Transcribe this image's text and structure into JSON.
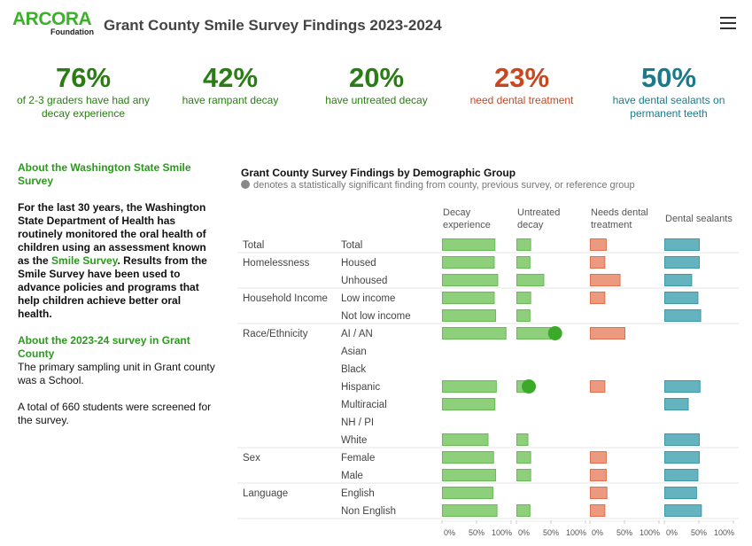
{
  "header": {
    "logo_text": "ARCORA",
    "logo_sub": "Foundation",
    "title": "Grant County Smile Survey Findings 2023-2024",
    "menu_icon": "hamburger-icon"
  },
  "kpis": [
    {
      "value": "76%",
      "label": "of 2-3 graders have had any decay experience",
      "color": "#2a7d14"
    },
    {
      "value": "42%",
      "label": "have rampant decay",
      "color": "#2a7d14"
    },
    {
      "value": "20%",
      "label": "have untreated decay",
      "color": "#2a7d14"
    },
    {
      "value": "23%",
      "label": "need dental treatment",
      "color": "#c9461e"
    },
    {
      "value": "50%",
      "label": "have dental sealants on permanent teeth",
      "color": "#1a7a8c"
    }
  ],
  "sidebar": {
    "about_heading": "About the Washington State Smile Survey",
    "about_text_1": "For the last 30 years, the Washington State Department of Health has routinely monitored the oral health of children using an assessment known as the ",
    "about_link": "Smile Survey",
    "about_text_2": ".  Results from the Smile Survey have been used to advance policies and programs that help children achieve better oral health.",
    "survey_heading": "About the 2023-24 survey in Grant County",
    "survey_text_1": "The primary sampling unit in Grant county was a School.",
    "survey_text_2": "A total of 660 students were screened for the survey."
  },
  "chart_data": {
    "type": "bar",
    "title": "Grant County Survey Findings by Demographic Group",
    "subtitle": "denotes a statistically significant finding from county, previous survey, or reference group",
    "measures": [
      "Decay experience",
      "Untreated decay",
      "Needs dental treatment",
      "Dental sealants"
    ],
    "colors": [
      "#8ecf7c",
      "#8ecf7c",
      "#eb9a80",
      "#66b3c0"
    ],
    "border_colors": [
      "#66bb55",
      "#66bb55",
      "#e07050",
      "#3a9aaa"
    ],
    "significance_color": "#3aaa28",
    "xlim": [
      0,
      100
    ],
    "tick_labels": [
      "0%",
      "50%",
      "100%"
    ],
    "rows": [
      {
        "group": "Total",
        "label": "Total",
        "values": [
          76,
          20,
          23,
          50
        ],
        "sig": [
          false,
          false,
          false,
          false
        ]
      },
      {
        "group": "Homelessness",
        "label": "Housed",
        "values": [
          75,
          19,
          21,
          50
        ],
        "sig": [
          false,
          false,
          false,
          false
        ]
      },
      {
        "group": "",
        "label": "Unhoused",
        "values": [
          80,
          39,
          43,
          39
        ],
        "sig": [
          false,
          false,
          false,
          false
        ]
      },
      {
        "group": "Household Income",
        "label": "Low income",
        "values": [
          75,
          20,
          21,
          48
        ],
        "sig": [
          false,
          false,
          false,
          false
        ]
      },
      {
        "group": "",
        "label": "Not low income",
        "values": [
          77,
          19,
          null,
          52
        ],
        "sig": [
          false,
          false,
          false,
          false
        ]
      },
      {
        "group": "Race/Ethnicity",
        "label": "AI / AN",
        "values": [
          92,
          56,
          50,
          null
        ],
        "sig": [
          false,
          true,
          false,
          false
        ]
      },
      {
        "group": "",
        "label": "Asian",
        "values": [
          null,
          null,
          null,
          null
        ],
        "sig": [
          false,
          false,
          false,
          false
        ]
      },
      {
        "group": "",
        "label": "Black",
        "values": [
          null,
          null,
          null,
          null
        ],
        "sig": [
          false,
          false,
          false,
          false
        ]
      },
      {
        "group": "",
        "label": "Hispanic",
        "values": [
          78,
          18,
          21,
          51
        ],
        "sig": [
          false,
          true,
          false,
          false
        ]
      },
      {
        "group": "",
        "label": "Multiracial",
        "values": [
          76,
          null,
          null,
          34
        ],
        "sig": [
          false,
          false,
          false,
          false
        ]
      },
      {
        "group": "",
        "label": "NH / PI",
        "values": [
          null,
          null,
          null,
          null
        ],
        "sig": [
          false,
          false,
          false,
          false
        ]
      },
      {
        "group": "",
        "label": "White",
        "values": [
          66,
          16,
          null,
          50
        ],
        "sig": [
          false,
          false,
          false,
          false
        ]
      },
      {
        "group": "Sex",
        "label": "Female",
        "values": [
          74,
          20,
          23,
          50
        ],
        "sig": [
          false,
          false,
          false,
          false
        ]
      },
      {
        "group": "",
        "label": "Male",
        "values": [
          77,
          20,
          23,
          48
        ],
        "sig": [
          false,
          false,
          false,
          false
        ]
      },
      {
        "group": "Language",
        "label": "English",
        "values": [
          73,
          null,
          24,
          46
        ],
        "sig": [
          false,
          false,
          false,
          false
        ]
      },
      {
        "group": "",
        "label": "Non English",
        "values": [
          79,
          19,
          21,
          53
        ],
        "sig": [
          false,
          false,
          false,
          false
        ]
      }
    ]
  }
}
